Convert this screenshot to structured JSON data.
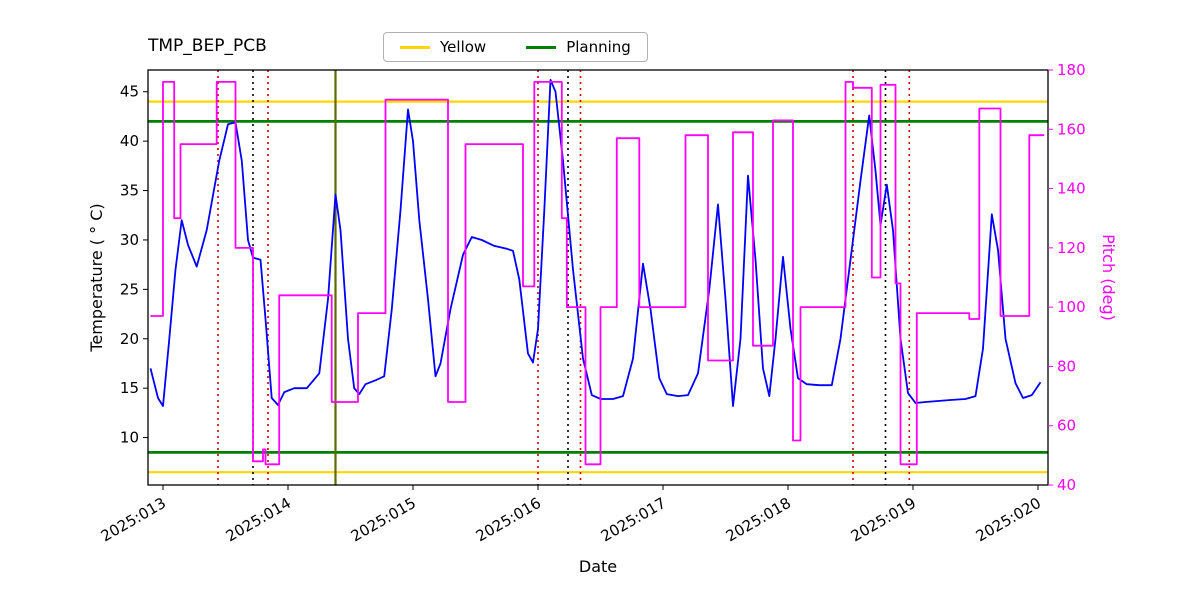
{
  "chart_data": {
    "type": "line",
    "title": "TMP_BEP_PCB",
    "xlabel": "Date",
    "ylabel_left": "Temperature ( ° C)",
    "ylabel_right": "Pitch (deg)",
    "x_domain": [
      12.88,
      20.08
    ],
    "x_ticks": [
      13,
      14,
      15,
      16,
      17,
      18,
      19,
      20
    ],
    "x_tick_labels": [
      "2025:013",
      "2025:014",
      "2025:015",
      "2025:016",
      "2025:017",
      "2025:018",
      "2025:019",
      "2025:020"
    ],
    "y_left": {
      "domain": [
        5.2,
        47.2
      ],
      "ticks": [
        10,
        15,
        20,
        25,
        30,
        35,
        40,
        45
      ]
    },
    "y_right": {
      "domain": [
        40,
        180
      ],
      "ticks": [
        40,
        60,
        80,
        100,
        120,
        140,
        160,
        180
      ]
    },
    "grid": false,
    "legend_position": "top-center",
    "colors": {
      "temperature": "#0000ff",
      "pitch": "#ff00ff",
      "yellow_limit": "#ffd700",
      "planning_limit": "#008000",
      "red_vline": "#cc0000",
      "black_vline": "#000000",
      "olive_vline": "#5c6b00",
      "axis": "#000000"
    },
    "legend": [
      {
        "label": "Yellow",
        "color": "#ffd700"
      },
      {
        "label": "Planning",
        "color": "#008000"
      }
    ],
    "hlines": [
      {
        "name": "yellow-upper-limit",
        "y": 44,
        "color": "#ffd700",
        "width": 2.2
      },
      {
        "name": "yellow-lower-limit",
        "y": 6.5,
        "color": "#ffd700",
        "width": 2.2
      },
      {
        "name": "planning-upper-limit",
        "y": 42,
        "color": "#008000",
        "width": 2.8
      },
      {
        "name": "planning-lower-limit",
        "y": 8.5,
        "color": "#008000",
        "width": 2.8
      }
    ],
    "vlines": [
      {
        "x": 13.44,
        "color": "#cc0000",
        "style": "dotted"
      },
      {
        "x": 13.72,
        "color": "#000000",
        "style": "dotted"
      },
      {
        "x": 13.84,
        "color": "#cc0000",
        "style": "dotted"
      },
      {
        "x": 14.38,
        "color": "#5c6b00",
        "style": "solid"
      },
      {
        "x": 16.0,
        "color": "#cc0000",
        "style": "dotted"
      },
      {
        "x": 16.24,
        "color": "#000000",
        "style": "dotted"
      },
      {
        "x": 16.34,
        "color": "#cc0000",
        "style": "dotted"
      },
      {
        "x": 18.52,
        "color": "#cc0000",
        "style": "dotted"
      },
      {
        "x": 18.78,
        "color": "#000000",
        "style": "dotted"
      },
      {
        "x": 18.97,
        "color": "#cc0000",
        "style": "dotted"
      }
    ],
    "series": [
      {
        "name": "temperature",
        "axis": "left",
        "color": "#0000ff",
        "points": [
          [
            12.9,
            17.0
          ],
          [
            12.96,
            14.0
          ],
          [
            13.0,
            13.2
          ],
          [
            13.05,
            20.0
          ],
          [
            13.1,
            27.0
          ],
          [
            13.15,
            32.0
          ],
          [
            13.2,
            29.5
          ],
          [
            13.27,
            27.3
          ],
          [
            13.35,
            31.0
          ],
          [
            13.45,
            38.0
          ],
          [
            13.52,
            41.7
          ],
          [
            13.58,
            41.9
          ],
          [
            13.63,
            38.0
          ],
          [
            13.68,
            30.0
          ],
          [
            13.72,
            28.2
          ],
          [
            13.78,
            28.0
          ],
          [
            13.82,
            22.0
          ],
          [
            13.87,
            14.0
          ],
          [
            13.92,
            13.3
          ],
          [
            13.97,
            14.6
          ],
          [
            14.05,
            15.0
          ],
          [
            14.15,
            15.0
          ],
          [
            14.25,
            16.5
          ],
          [
            14.32,
            24.0
          ],
          [
            14.38,
            34.6
          ],
          [
            14.42,
            31.0
          ],
          [
            14.48,
            20.0
          ],
          [
            14.53,
            15.0
          ],
          [
            14.57,
            14.4
          ],
          [
            14.62,
            15.4
          ],
          [
            14.7,
            15.8
          ],
          [
            14.77,
            16.2
          ],
          [
            14.83,
            23.0
          ],
          [
            14.9,
            33.0
          ],
          [
            14.96,
            43.2
          ],
          [
            15.0,
            40.0
          ],
          [
            15.05,
            32.0
          ],
          [
            15.12,
            24.0
          ],
          [
            15.18,
            16.2
          ],
          [
            15.22,
            17.5
          ],
          [
            15.3,
            23.0
          ],
          [
            15.4,
            28.5
          ],
          [
            15.47,
            30.3
          ],
          [
            15.55,
            30.0
          ],
          [
            15.65,
            29.4
          ],
          [
            15.75,
            29.1
          ],
          [
            15.8,
            28.9
          ],
          [
            15.85,
            26.0
          ],
          [
            15.92,
            18.5
          ],
          [
            15.96,
            17.6
          ],
          [
            16.0,
            21.0
          ],
          [
            16.05,
            33.0
          ],
          [
            16.1,
            46.2
          ],
          [
            16.14,
            45.0
          ],
          [
            16.2,
            38.0
          ],
          [
            16.28,
            27.0
          ],
          [
            16.36,
            18.0
          ],
          [
            16.43,
            14.3
          ],
          [
            16.5,
            13.9
          ],
          [
            16.6,
            13.9
          ],
          [
            16.68,
            14.2
          ],
          [
            16.76,
            18.0
          ],
          [
            16.84,
            27.6
          ],
          [
            16.9,
            23.0
          ],
          [
            16.97,
            16.0
          ],
          [
            17.03,
            14.4
          ],
          [
            17.12,
            14.2
          ],
          [
            17.2,
            14.3
          ],
          [
            17.28,
            16.5
          ],
          [
            17.37,
            25.0
          ],
          [
            17.44,
            33.6
          ],
          [
            17.5,
            24.0
          ],
          [
            17.56,
            13.2
          ],
          [
            17.62,
            20.0
          ],
          [
            17.68,
            36.5
          ],
          [
            17.74,
            28.0
          ],
          [
            17.8,
            17.0
          ],
          [
            17.85,
            14.2
          ],
          [
            17.9,
            20.0
          ],
          [
            17.96,
            28.3
          ],
          [
            18.02,
            21.0
          ],
          [
            18.08,
            16.0
          ],
          [
            18.15,
            15.4
          ],
          [
            18.25,
            15.3
          ],
          [
            18.35,
            15.3
          ],
          [
            18.42,
            20.0
          ],
          [
            18.5,
            28.0
          ],
          [
            18.58,
            36.0
          ],
          [
            18.65,
            42.6
          ],
          [
            18.7,
            37.0
          ],
          [
            18.74,
            31.5
          ],
          [
            18.79,
            35.6
          ],
          [
            18.84,
            31.0
          ],
          [
            18.9,
            20.0
          ],
          [
            18.96,
            14.5
          ],
          [
            19.02,
            13.5
          ],
          [
            19.1,
            13.6
          ],
          [
            19.2,
            13.7
          ],
          [
            19.3,
            13.8
          ],
          [
            19.42,
            13.9
          ],
          [
            19.5,
            14.2
          ],
          [
            19.56,
            19.0
          ],
          [
            19.63,
            32.6
          ],
          [
            19.68,
            29.0
          ],
          [
            19.74,
            20.0
          ],
          [
            19.82,
            15.5
          ],
          [
            19.88,
            14.0
          ],
          [
            19.95,
            14.3
          ],
          [
            20.02,
            15.6
          ]
        ]
      },
      {
        "name": "pitch",
        "axis": "right",
        "color": "#ff00ff",
        "points": [
          [
            12.9,
            97
          ],
          [
            13.0,
            97
          ],
          [
            13.0,
            176
          ],
          [
            13.09,
            176
          ],
          [
            13.09,
            130
          ],
          [
            13.14,
            130
          ],
          [
            13.14,
            155
          ],
          [
            13.43,
            155
          ],
          [
            13.43,
            176
          ],
          [
            13.58,
            176
          ],
          [
            13.58,
            120
          ],
          [
            13.72,
            120
          ],
          [
            13.72,
            48
          ],
          [
            13.8,
            48
          ],
          [
            13.8,
            52
          ],
          [
            13.82,
            52
          ],
          [
            13.82,
            47
          ],
          [
            13.93,
            47
          ],
          [
            13.93,
            104
          ],
          [
            14.35,
            104
          ],
          [
            14.35,
            68
          ],
          [
            14.56,
            68
          ],
          [
            14.56,
            98
          ],
          [
            14.78,
            98
          ],
          [
            14.78,
            170
          ],
          [
            15.28,
            170
          ],
          [
            15.28,
            68
          ],
          [
            15.42,
            68
          ],
          [
            15.42,
            155
          ],
          [
            15.88,
            155
          ],
          [
            15.88,
            107
          ],
          [
            15.97,
            107
          ],
          [
            15.97,
            176
          ],
          [
            16.19,
            176
          ],
          [
            16.19,
            130
          ],
          [
            16.23,
            130
          ],
          [
            16.23,
            100
          ],
          [
            16.38,
            100
          ],
          [
            16.38,
            47
          ],
          [
            16.5,
            47
          ],
          [
            16.5,
            100
          ],
          [
            16.63,
            100
          ],
          [
            16.63,
            157
          ],
          [
            16.81,
            157
          ],
          [
            16.81,
            100
          ],
          [
            17.18,
            100
          ],
          [
            17.18,
            158
          ],
          [
            17.36,
            158
          ],
          [
            17.36,
            82
          ],
          [
            17.56,
            82
          ],
          [
            17.56,
            159
          ],
          [
            17.72,
            159
          ],
          [
            17.72,
            87
          ],
          [
            17.88,
            87
          ],
          [
            17.88,
            163
          ],
          [
            18.04,
            163
          ],
          [
            18.04,
            55
          ],
          [
            18.1,
            55
          ],
          [
            18.1,
            100
          ],
          [
            18.46,
            100
          ],
          [
            18.46,
            176
          ],
          [
            18.52,
            176
          ],
          [
            18.52,
            174
          ],
          [
            18.67,
            174
          ],
          [
            18.67,
            110
          ],
          [
            18.74,
            110
          ],
          [
            18.74,
            175
          ],
          [
            18.86,
            175
          ],
          [
            18.86,
            108
          ],
          [
            18.9,
            108
          ],
          [
            18.9,
            47
          ],
          [
            19.03,
            47
          ],
          [
            19.03,
            98
          ],
          [
            19.45,
            98
          ],
          [
            19.45,
            96
          ],
          [
            19.53,
            96
          ],
          [
            19.53,
            167
          ],
          [
            19.7,
            167
          ],
          [
            19.7,
            97
          ],
          [
            19.93,
            97
          ],
          [
            19.93,
            158
          ],
          [
            20.05,
            158
          ]
        ]
      }
    ]
  }
}
